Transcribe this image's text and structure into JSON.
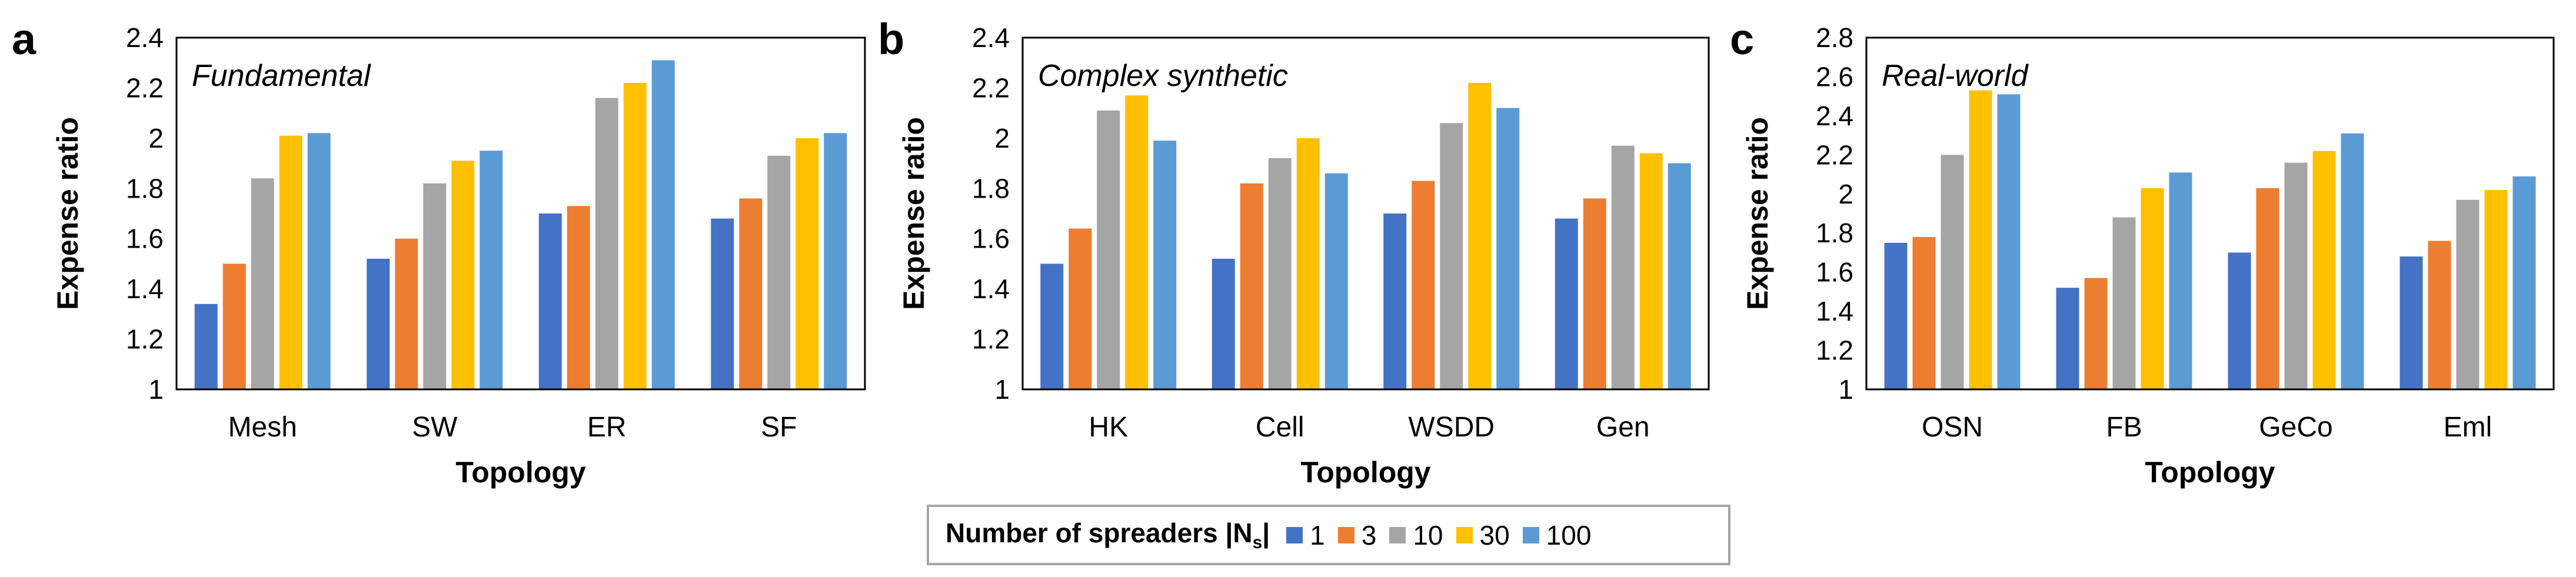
{
  "legend": {
    "title": "Number of spreaders |N",
    "title_sub": "s",
    "title_end": "|",
    "entries": [
      "1",
      "3",
      "10",
      "30",
      "100"
    ]
  },
  "colors": [
    "#4472C4",
    "#ED7D31",
    "#A5A5A5",
    "#FFC000",
    "#5B9BD5"
  ],
  "chart_data": [
    {
      "type": "bar",
      "panel": "a",
      "title": "Fundamental",
      "xlabel": "Topology",
      "ylabel": "Expense ratio",
      "ylim": [
        1,
        2.4
      ],
      "yticks": [
        "1",
        "1.2",
        "1.4",
        "1.6",
        "1.8",
        "2",
        "2.2",
        "2.4"
      ],
      "categories": [
        "Mesh",
        "SW",
        "ER",
        "SF"
      ],
      "series": [
        {
          "name": "1",
          "values": [
            1.34,
            1.52,
            1.7,
            1.68
          ]
        },
        {
          "name": "3",
          "values": [
            1.5,
            1.6,
            1.73,
            1.76
          ]
        },
        {
          "name": "10",
          "values": [
            1.84,
            1.82,
            2.16,
            1.93
          ]
        },
        {
          "name": "30",
          "values": [
            2.01,
            1.91,
            2.22,
            2.0
          ]
        },
        {
          "name": "100",
          "values": [
            2.02,
            1.95,
            2.31,
            2.02
          ]
        }
      ]
    },
    {
      "type": "bar",
      "panel": "b",
      "title": "Complex synthetic",
      "xlabel": "Topology",
      "ylabel": "Expense ratio",
      "ylim": [
        1,
        2.4
      ],
      "yticks": [
        "1",
        "1.2",
        "1.4",
        "1.6",
        "1.8",
        "2",
        "2.2",
        "2.4"
      ],
      "categories": [
        "HK",
        "Cell",
        "WSDD",
        "Gen"
      ],
      "series": [
        {
          "name": "1",
          "values": [
            1.5,
            1.52,
            1.7,
            1.68
          ]
        },
        {
          "name": "3",
          "values": [
            1.64,
            1.82,
            1.83,
            1.76
          ]
        },
        {
          "name": "10",
          "values": [
            2.11,
            1.92,
            2.06,
            1.97
          ]
        },
        {
          "name": "30",
          "values": [
            2.17,
            2.0,
            2.22,
            1.94
          ]
        },
        {
          "name": "100",
          "values": [
            1.99,
            1.86,
            2.12,
            1.9
          ]
        }
      ]
    },
    {
      "type": "bar",
      "panel": "c",
      "title": "Real-world",
      "xlabel": "Topology",
      "ylabel": "Expense ratio",
      "ylim": [
        1,
        2.8
      ],
      "yticks": [
        "1",
        "1.2",
        "1.4",
        "1.6",
        "1.8",
        "2",
        "2.2",
        "2.4",
        "2.6",
        "2.8"
      ],
      "categories": [
        "OSN",
        "FB",
        "GeCo",
        "Eml"
      ],
      "series": [
        {
          "name": "1",
          "values": [
            1.75,
            1.52,
            1.7,
            1.68
          ]
        },
        {
          "name": "3",
          "values": [
            1.78,
            1.57,
            2.03,
            1.76
          ]
        },
        {
          "name": "10",
          "values": [
            2.2,
            1.88,
            2.16,
            1.97
          ]
        },
        {
          "name": "30",
          "values": [
            2.53,
            2.03,
            2.22,
            2.02
          ]
        },
        {
          "name": "100",
          "values": [
            2.51,
            2.11,
            2.31,
            2.09
          ]
        }
      ]
    }
  ]
}
